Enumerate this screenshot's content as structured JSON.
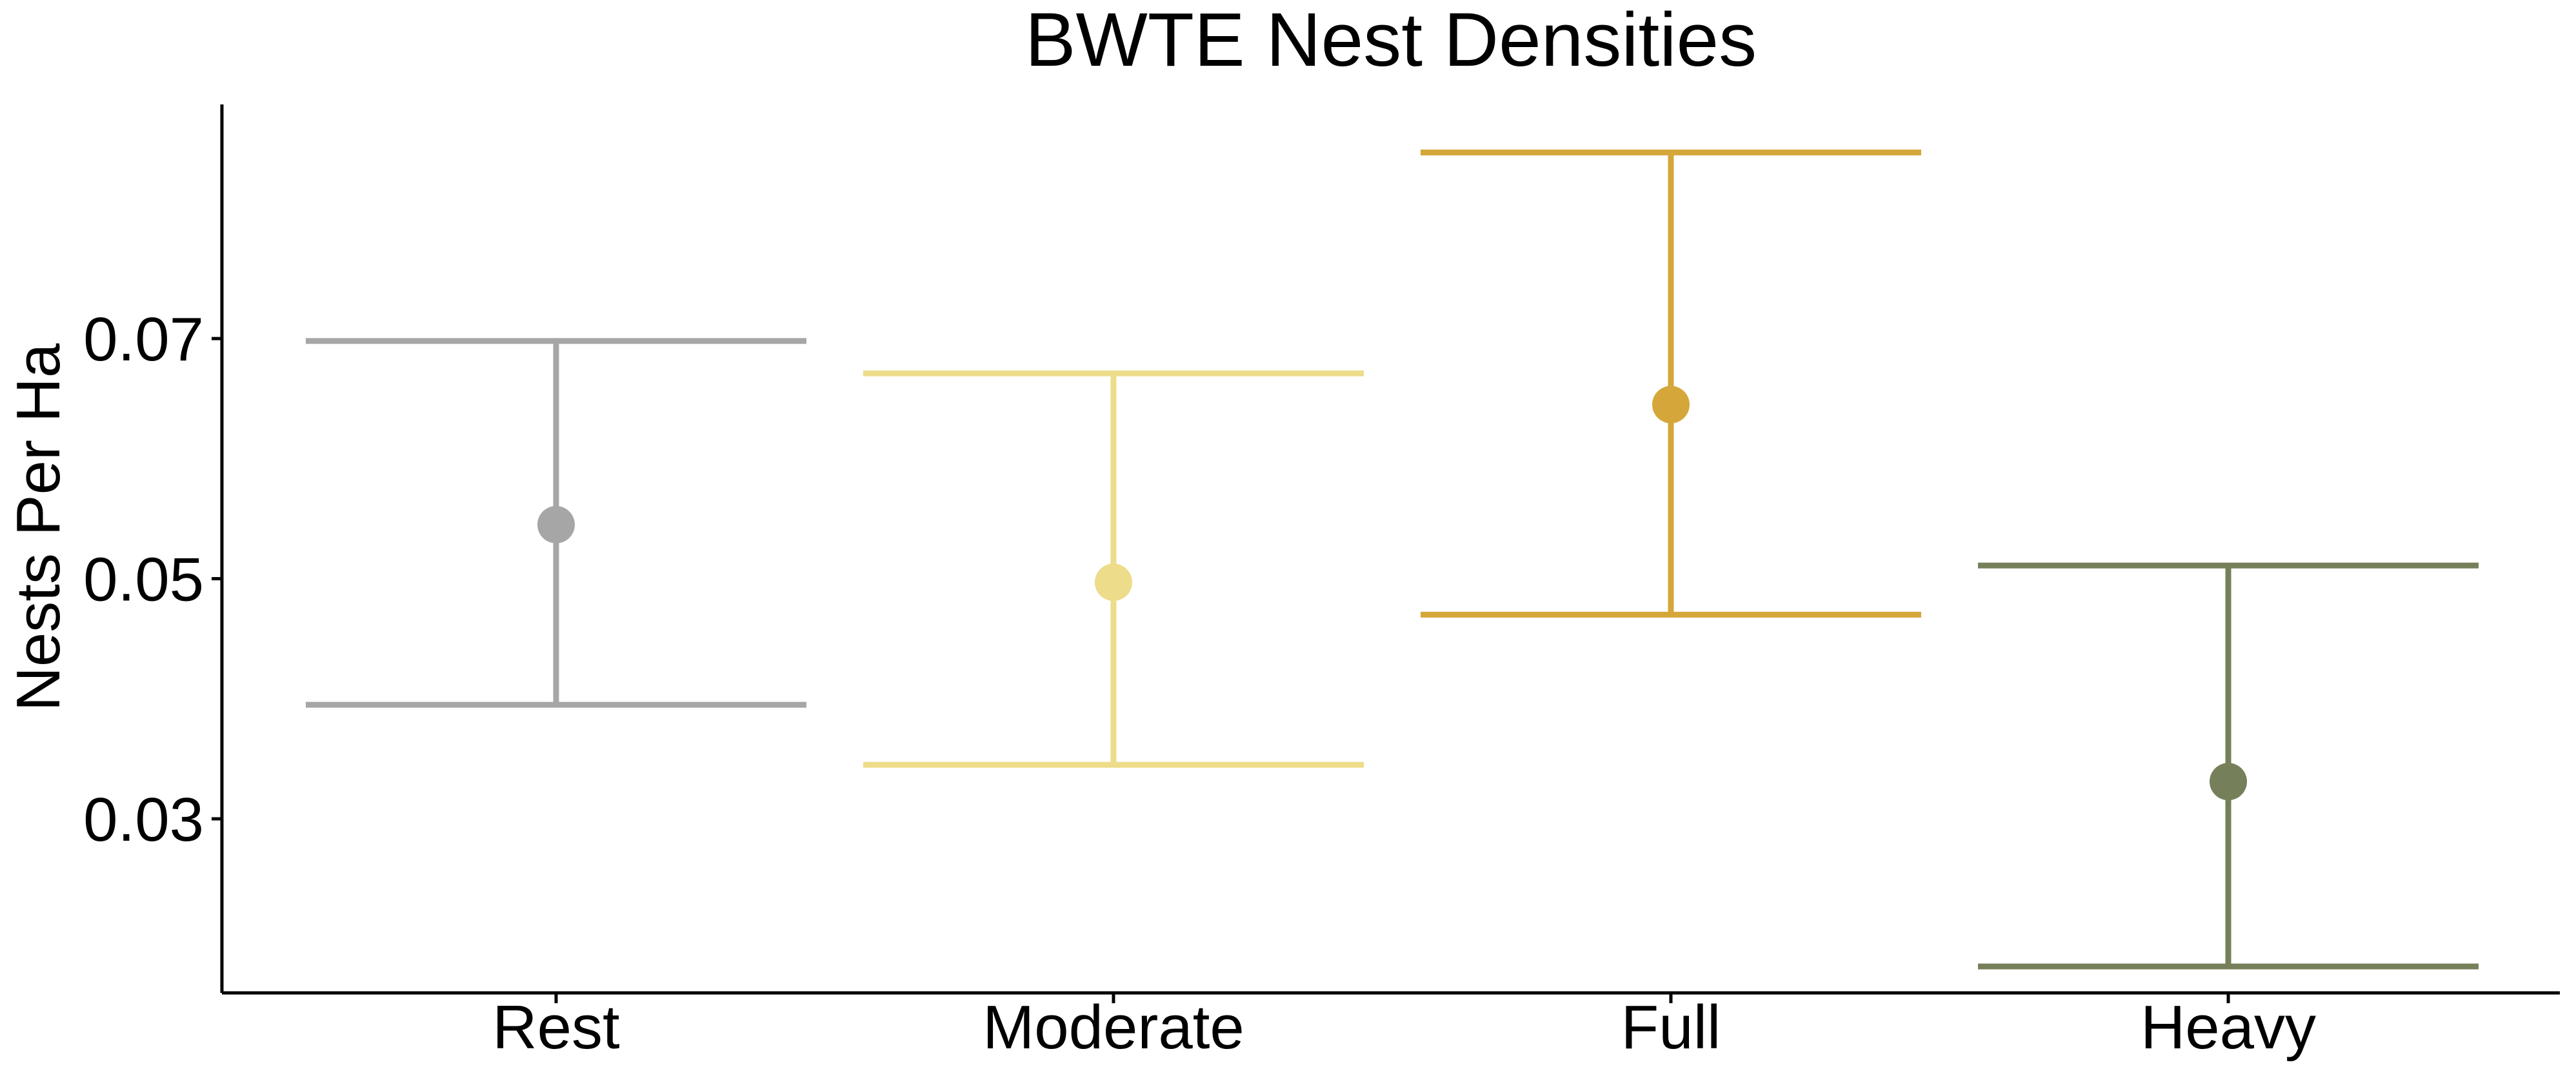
{
  "chart_data": {
    "type": "pointrange",
    "title": "BWTE Nest Densities",
    "xlabel": "",
    "ylabel": "Nests Per Ha",
    "ylim": [
      0.0155,
      0.0895
    ],
    "y_ticks": [
      0.03,
      0.05,
      0.07
    ],
    "y_tick_labels": [
      "0.03",
      "0.05",
      "0.07"
    ],
    "grid": false,
    "legend": "none",
    "categories": [
      "Rest",
      "Moderate",
      "Full",
      "Heavy"
    ],
    "points": [
      {
        "category": "Rest",
        "estimate": 0.0545,
        "lower": 0.0395,
        "upper": 0.0698,
        "color": "#A6A6A6"
      },
      {
        "category": "Moderate",
        "estimate": 0.0497,
        "lower": 0.0345,
        "upper": 0.0671,
        "color": "#EDDC89"
      },
      {
        "category": "Full",
        "estimate": 0.0645,
        "lower": 0.047,
        "upper": 0.0855,
        "color": "#D5A73A"
      },
      {
        "category": "Heavy",
        "estimate": 0.0331,
        "lower": 0.0177,
        "upper": 0.0511,
        "color": "#75805A"
      }
    ]
  }
}
